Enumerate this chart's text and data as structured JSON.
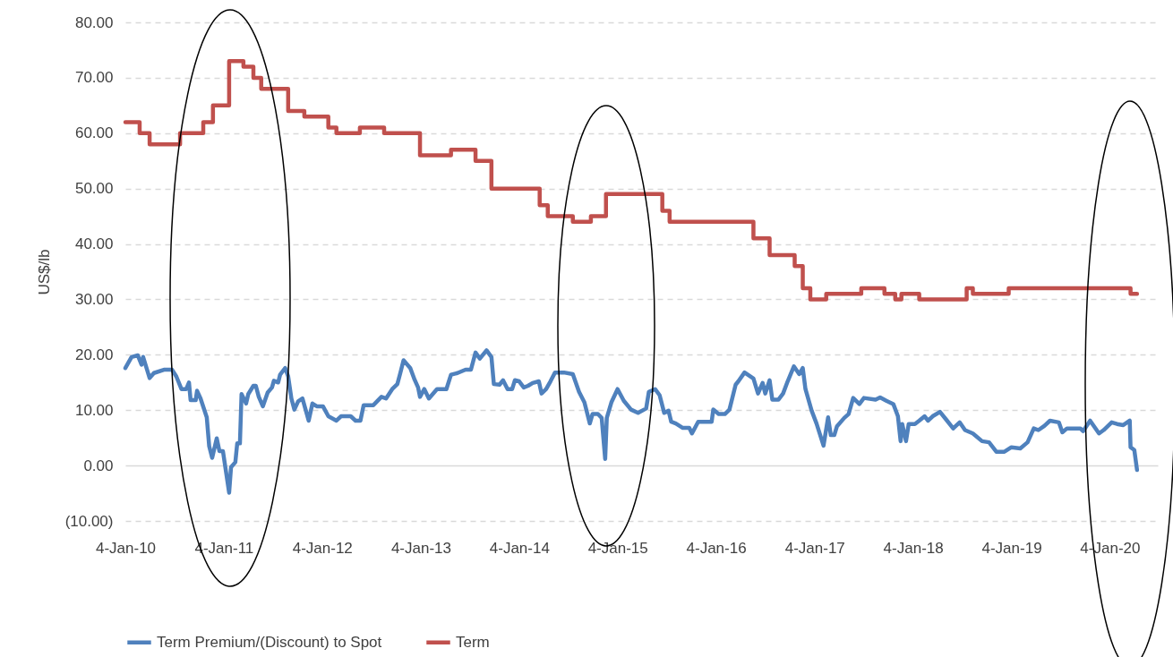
{
  "chart_data": {
    "type": "line",
    "ylabel": "US$/lb",
    "xlim": [
      "2010-01-04",
      "2020-06-30"
    ],
    "xticks": [
      {
        "value": "2010-01-04",
        "label": "4-Jan-10"
      },
      {
        "value": "2011-01-04",
        "label": "4-Jan-11"
      },
      {
        "value": "2012-01-04",
        "label": "4-Jan-12"
      },
      {
        "value": "2013-01-04",
        "label": "4-Jan-13"
      },
      {
        "value": "2014-01-04",
        "label": "4-Jan-14"
      },
      {
        "value": "2015-01-04",
        "label": "4-Jan-15"
      },
      {
        "value": "2016-01-04",
        "label": "4-Jan-16"
      },
      {
        "value": "2017-01-04",
        "label": "4-Jan-17"
      },
      {
        "value": "2018-01-04",
        "label": "4-Jan-18"
      },
      {
        "value": "2019-01-04",
        "label": "4-Jan-19"
      },
      {
        "value": "2020-01-04",
        "label": "4-Jan-20"
      }
    ],
    "ylim": [
      -10,
      80
    ],
    "yticks": [
      {
        "value": -10,
        "label": "(10.00)"
      },
      {
        "value": 0,
        "label": "0.00"
      },
      {
        "value": 10,
        "label": "10.00"
      },
      {
        "value": 20,
        "label": "20.00"
      },
      {
        "value": 30,
        "label": "30.00"
      },
      {
        "value": 40,
        "label": "40.00"
      },
      {
        "value": 50,
        "label": "50.00"
      },
      {
        "value": 60,
        "label": "60.00"
      },
      {
        "value": 70,
        "label": "70.00"
      },
      {
        "value": 80,
        "label": "80.00"
      }
    ],
    "grid": "y",
    "legend": "bottom",
    "series": [
      {
        "name": "Term Premium/(Discount) to Spot",
        "color": "#4f81bd",
        "x": [
          "2010-01-04",
          "2010-01-27",
          "2010-02-19",
          "2010-03-05",
          "2010-03-11",
          "2010-04-04",
          "2010-04-20",
          "2010-05-27",
          "2010-06-26",
          "2010-07-12",
          "2010-07-31",
          "2010-08-18",
          "2010-08-28",
          "2010-09-03",
          "2010-09-22",
          "2010-09-27",
          "2010-10-10",
          "2010-11-02",
          "2010-11-11",
          "2010-11-22",
          "2010-12-09",
          "2010-12-19",
          "2011-01-01",
          "2011-01-24",
          "2011-01-31",
          "2011-02-16",
          "2011-02-23",
          "2011-03-05",
          "2011-03-11",
          "2011-03-28",
          "2011-04-05",
          "2011-04-24",
          "2011-05-03",
          "2011-05-14",
          "2011-05-29",
          "2011-06-16",
          "2011-07-02",
          "2011-07-09",
          "2011-07-25",
          "2011-08-01",
          "2011-08-20",
          "2011-08-31",
          "2011-09-12",
          "2011-09-23",
          "2011-10-07",
          "2011-10-23",
          "2011-11-15",
          "2011-11-29",
          "2011-12-15",
          "2012-01-07",
          "2012-01-27",
          "2012-02-26",
          "2012-03-14",
          "2012-04-19",
          "2012-05-07",
          "2012-05-25",
          "2012-06-06",
          "2012-07-12",
          "2012-08-11",
          "2012-08-28",
          "2012-09-20",
          "2012-10-09",
          "2012-10-20",
          "2012-11-01",
          "2012-11-26",
          "2012-12-12",
          "2012-12-25",
          "2013-01-01",
          "2013-01-17",
          "2013-02-03",
          "2013-03-05",
          "2013-04-09",
          "2013-04-26",
          "2013-05-20",
          "2013-06-19",
          "2013-07-09",
          "2013-07-26",
          "2013-08-11",
          "2013-09-05",
          "2013-09-23",
          "2013-10-02",
          "2013-10-23",
          "2013-11-05",
          "2013-11-22",
          "2013-12-09",
          "2013-12-19",
          "2014-01-04",
          "2014-01-21",
          "2014-02-06",
          "2014-02-23",
          "2014-03-18",
          "2014-03-28",
          "2014-04-14",
          "2014-04-30",
          "2014-05-17",
          "2014-06-19",
          "2014-07-22",
          "2014-08-14",
          "2014-09-03",
          "2014-09-23",
          "2014-10-03",
          "2014-10-23",
          "2014-11-06",
          "2014-11-19",
          "2014-11-25",
          "2014-12-12",
          "2015-01-04",
          "2015-01-27",
          "2015-02-23",
          "2015-03-21",
          "2015-04-20",
          "2015-04-30",
          "2015-05-23",
          "2015-06-09",
          "2015-06-26",
          "2015-07-12",
          "2015-07-22",
          "2015-08-08",
          "2015-09-03",
          "2015-09-27",
          "2015-10-07",
          "2015-10-30",
          "2015-12-19",
          "2015-12-25",
          "2016-01-14",
          "2016-02-06",
          "2016-02-23",
          "2016-03-17",
          "2016-03-27",
          "2016-04-19",
          "2016-05-22",
          "2016-06-08",
          "2016-06-25",
          "2016-07-05",
          "2016-07-21",
          "2016-07-31",
          "2016-08-23",
          "2016-09-09",
          "2016-09-26",
          "2016-10-19",
          "2016-11-08",
          "2016-11-21",
          "2016-12-01",
          "2016-12-24",
          "2017-01-11",
          "2017-02-06",
          "2017-02-23",
          "2017-03-05",
          "2017-03-18",
          "2017-03-28",
          "2017-04-24",
          "2017-05-10",
          "2017-05-27",
          "2017-06-19",
          "2017-07-06",
          "2017-08-18",
          "2017-09-04",
          "2017-09-27",
          "2017-10-23",
          "2017-11-09",
          "2017-11-19",
          "2017-11-25",
          "2017-12-09",
          "2017-12-19",
          "2018-01-11",
          "2018-01-27",
          "2018-02-16",
          "2018-03-01",
          "2018-03-18",
          "2018-04-14",
          "2018-05-07",
          "2018-06-02",
          "2018-06-26",
          "2018-07-16",
          "2018-08-14",
          "2018-09-17",
          "2018-10-13",
          "2018-11-09",
          "2018-12-09",
          "2019-01-04",
          "2019-02-06",
          "2019-03-05",
          "2019-03-28",
          "2019-04-14",
          "2019-05-07",
          "2019-05-27",
          "2019-06-29",
          "2019-07-12",
          "2019-07-29",
          "2019-09-17",
          "2019-09-27",
          "2019-10-23",
          "2019-11-25",
          "2019-12-12",
          "2020-01-11",
          "2020-01-31",
          "2020-02-23",
          "2020-03-18",
          "2020-03-21",
          "2020-04-04",
          "2020-04-14"
        ],
        "values": [
          17.6,
          19.6,
          19.9,
          18.2,
          19.6,
          15.8,
          16.7,
          17.3,
          17.3,
          16.1,
          13.8,
          13.8,
          15.0,
          11.8,
          11.8,
          13.5,
          12.1,
          8.7,
          3.5,
          1.4,
          4.9,
          2.6,
          2.6,
          -4.9,
          -0.3,
          0.6,
          4.0,
          4.0,
          12.9,
          11.2,
          12.9,
          14.4,
          14.4,
          12.4,
          10.7,
          13.2,
          14.1,
          15.3,
          15.0,
          16.4,
          17.6,
          16.1,
          12.1,
          10.1,
          11.6,
          12.1,
          8.1,
          11.2,
          10.7,
          10.7,
          8.9,
          8.1,
          8.9,
          8.9,
          8.1,
          8.1,
          10.9,
          10.9,
          12.4,
          12.1,
          13.8,
          14.7,
          16.7,
          19.0,
          17.6,
          15.5,
          14.1,
          12.4,
          13.8,
          12.1,
          13.8,
          13.8,
          16.4,
          16.7,
          17.3,
          17.3,
          20.4,
          19.3,
          20.8,
          19.6,
          14.7,
          14.6,
          15.4,
          13.8,
          13.8,
          15.4,
          15.2,
          14.1,
          14.4,
          14.9,
          15.2,
          13.0,
          13.8,
          15.2,
          16.8,
          16.8,
          16.5,
          13.3,
          11.4,
          7.6,
          9.3,
          9.3,
          8.6,
          1.2,
          8.6,
          11.4,
          13.8,
          11.7,
          10.1,
          9.5,
          10.3,
          13.3,
          13.8,
          12.7,
          9.5,
          9.9,
          7.9,
          7.6,
          6.8,
          6.8,
          5.8,
          7.9,
          7.9,
          10.1,
          9.3,
          9.3,
          10.1,
          14.6,
          15.2,
          16.8,
          15.7,
          13.0,
          14.9,
          13.0,
          15.4,
          11.9,
          11.9,
          13.0,
          15.2,
          17.9,
          16.5,
          17.6,
          13.8,
          9.9,
          7.6,
          3.6,
          8.7,
          5.5,
          5.5,
          7.1,
          8.6,
          9.3,
          12.2,
          11.1,
          12.2,
          11.9,
          12.3,
          11.7,
          11.1,
          8.9,
          4.4,
          7.5,
          4.4,
          7.5,
          7.5,
          8.1,
          8.9,
          8.1,
          8.9,
          9.7,
          8.3,
          6.7,
          7.8,
          6.4,
          5.8,
          4.4,
          4.2,
          2.5,
          2.5,
          3.3,
          3.1,
          4.2,
          6.7,
          6.4,
          7.2,
          8.1,
          7.8,
          6.0,
          6.7,
          6.7,
          6.2,
          8.1,
          5.8,
          6.4,
          7.8,
          7.5,
          7.3,
          8.1,
          3.3,
          2.8,
          -0.8
        ]
      },
      {
        "name": "Term",
        "color": "#c0504d",
        "type": "step",
        "x": [
          "2010-01-04",
          "2010-02-26",
          "2010-04-04",
          "2010-07-26",
          "2010-10-20",
          "2010-11-25",
          "2011-01-24",
          "2011-03-18",
          "2011-04-24",
          "2011-05-23",
          "2011-08-31",
          "2011-10-30",
          "2012-01-27",
          "2012-02-26",
          "2012-05-23",
          "2012-08-21",
          "2013-01-01",
          "2013-04-26",
          "2013-07-26",
          "2013-09-23",
          "2014-03-21",
          "2014-04-20",
          "2014-07-22",
          "2014-09-27",
          "2014-11-22",
          "2015-06-19",
          "2015-07-16",
          "2016-05-22",
          "2016-07-21",
          "2016-10-22",
          "2016-11-21",
          "2016-12-19",
          "2017-02-16",
          "2017-06-26",
          "2017-09-20",
          "2017-10-30",
          "2017-11-22",
          "2018-01-27",
          "2018-07-22",
          "2018-08-14",
          "2018-12-25",
          "2020-03-21",
          "2020-04-14"
        ],
        "values": [
          62,
          60,
          58,
          60,
          62,
          65,
          73,
          72,
          70,
          68,
          64,
          63,
          61,
          60,
          61,
          60,
          56,
          57,
          55,
          50,
          47,
          45,
          44,
          45,
          49,
          46,
          44,
          41,
          38,
          36,
          32,
          30,
          31,
          32,
          31,
          30,
          31,
          30,
          32,
          31,
          32,
          31,
          31
        ]
      }
    ]
  }
}
